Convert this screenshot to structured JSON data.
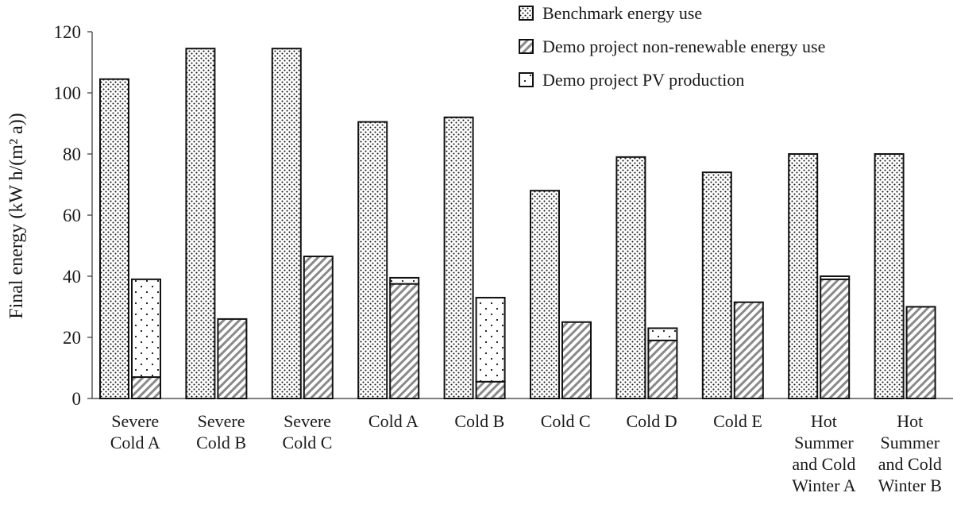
{
  "chart_data": {
    "type": "bar",
    "categories": [
      [
        "Severe",
        "Cold A"
      ],
      [
        "Severe",
        "Cold B"
      ],
      [
        "Severe",
        "Cold C"
      ],
      [
        "Cold A"
      ],
      [
        "Cold B"
      ],
      [
        "Cold C"
      ],
      [
        "Cold D"
      ],
      [
        "Cold E"
      ],
      [
        "Hot",
        "Summer",
        "and Cold",
        "Winter A"
      ],
      [
        "Hot",
        "Summer",
        "and Cold",
        "Winter B"
      ]
    ],
    "series": [
      {
        "name": "Benchmark energy use",
        "values": [
          104.5,
          114.5,
          114.5,
          90.5,
          92,
          68,
          79,
          74,
          80,
          80
        ]
      },
      {
        "name": "Demo project non-renewable energy use",
        "values": [
          7,
          26,
          46.5,
          37.5,
          5.5,
          25,
          19,
          31.5,
          39,
          30
        ]
      },
      {
        "name": "Demo project PV production",
        "values": [
          32,
          0,
          0,
          2,
          27.5,
          0,
          4,
          0,
          1,
          0
        ]
      }
    ],
    "ylabel": "Final energy  (kW h/(m² a))",
    "ylim": [
      0,
      120
    ],
    "yticks": [
      0,
      20,
      40,
      60,
      80,
      100,
      120
    ],
    "legend_position": "top-right",
    "grid": false
  }
}
